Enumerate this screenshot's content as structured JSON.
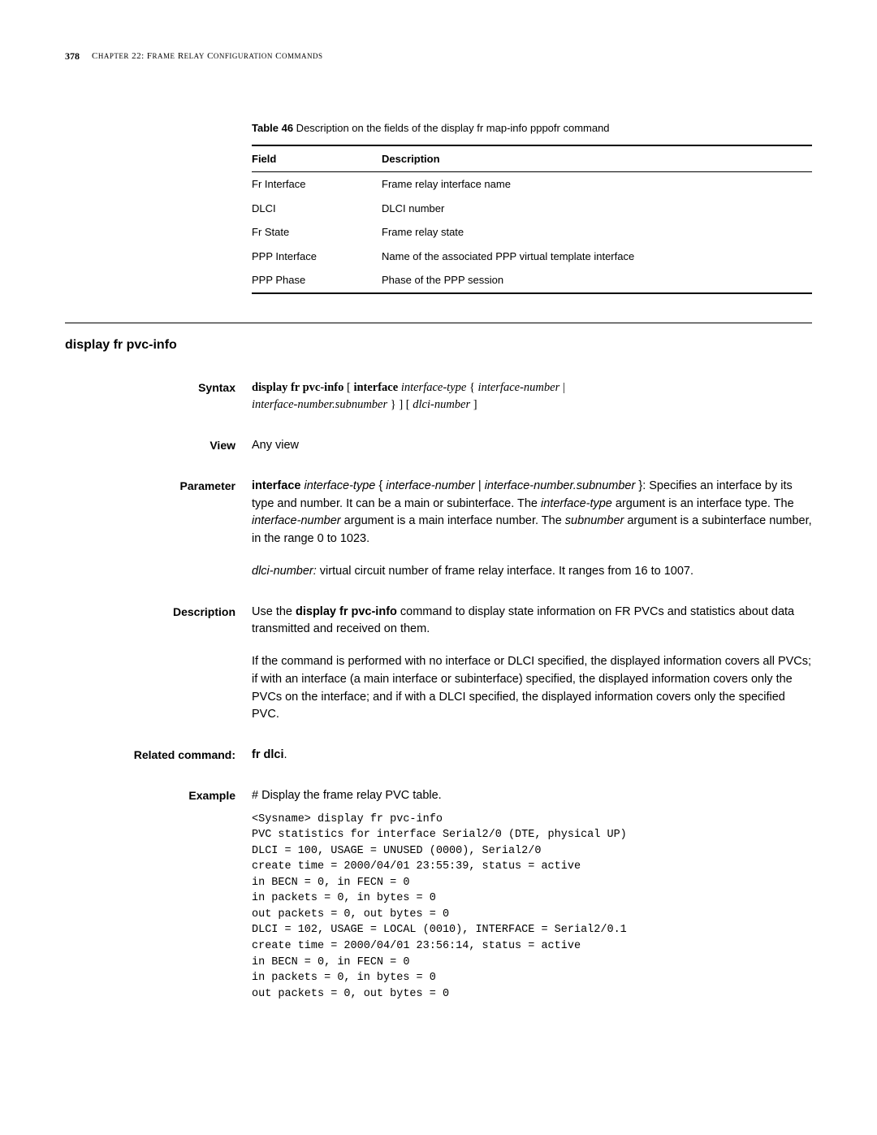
{
  "page": {
    "number": "378",
    "chapter_title_1": "C",
    "chapter_title_2": "HAPTER",
    "chapter_title_3": " 22: F",
    "chapter_title_4": "RAME",
    "chapter_title_5": " R",
    "chapter_title_6": "ELAY",
    "chapter_title_7": " C",
    "chapter_title_8": "ONFIGURATION",
    "chapter_title_9": " C",
    "chapter_title_10": "OMMANDS"
  },
  "table": {
    "caption_label": "Table 46",
    "caption_text": "   Description on the fields of the display fr map-info pppofr command",
    "header_field": "Field",
    "header_desc": "Description",
    "rows": [
      {
        "field": "Fr Interface",
        "desc": "Frame relay interface name"
      },
      {
        "field": "DLCI",
        "desc": "DLCI number"
      },
      {
        "field": "Fr State",
        "desc": "Frame relay state"
      },
      {
        "field": "PPP Interface",
        "desc": "Name of the associated PPP virtual template interface"
      },
      {
        "field": "PPP Phase",
        "desc": "Phase of the PPP session"
      }
    ]
  },
  "section": {
    "title": "display fr pvc-info"
  },
  "syntax": {
    "label": "Syntax",
    "cmd": "display fr pvc-info",
    "kw_interface": "interface",
    "arg_itype": "interface-type",
    "arg_inum": "interface-number",
    "arg_sub": "interface-number.subnumber",
    "arg_dlci": "dlci-number",
    "open_bracket": " [ ",
    "open_brace": " { ",
    "pipe": " | ",
    "close_brace_bracket": " } ] [ ",
    "close_bracket": " ]"
  },
  "view": {
    "label": "View",
    "text": "Any view"
  },
  "parameter": {
    "label": "Parameter",
    "p1_kw": "interface",
    "p1_arg1": "interface-type",
    "p1_brace_open": " { ",
    "p1_arg2": "interface-number",
    "p1_pipe": " | ",
    "p1_arg3": "interface-number.subnumber",
    "p1_brace_close": " }: ",
    "p1_text1": "Specifies an interface by its type and number. It can be a main or subinterface. The ",
    "p1_itype": "interface-type",
    "p1_text2": " argument is an interface type. The ",
    "p1_inum": "interface-number",
    "p1_text3": " argument is a main interface number. The ",
    "p1_sub": "subnumber",
    "p1_text4": " argument is a subinterface number, in the range 0 to 1023.",
    "p2_arg": "dlci-number:",
    "p2_text": " virtual circuit number of frame relay interface. It ranges from 16 to 1007."
  },
  "description": {
    "label": "Description",
    "p1_text1": "Use the ",
    "p1_cmd": "display fr pvc-info",
    "p1_text2": " command to display state information on FR PVCs and statistics about data transmitted and received on them.",
    "p2": "If the command is performed with no interface or DLCI specified, the displayed information covers all PVCs; if with an interface (a main interface or subinterface) specified, the displayed information covers only the PVCs on the interface; and if with a DLCI specified, the displayed information covers only the specified PVC."
  },
  "related": {
    "label": "Related command:",
    "cmd": "fr dlci",
    "period": "."
  },
  "example": {
    "label": "Example",
    "intro": "# Display the frame relay PVC table.",
    "code": "<Sysname> display fr pvc-info\nPVC statistics for interface Serial2/0 (DTE, physical UP)\nDLCI = 100, USAGE = UNUSED (0000), Serial2/0\ncreate time = 2000/04/01 23:55:39, status = active\nin BECN = 0, in FECN = 0\nin packets = 0, in bytes = 0\nout packets = 0, out bytes = 0\nDLCI = 102, USAGE = LOCAL (0010), INTERFACE = Serial2/0.1\ncreate time = 2000/04/01 23:56:14, status = active\nin BECN = 0, in FECN = 0\nin packets = 0, in bytes = 0\nout packets = 0, out bytes = 0"
  },
  "colors": {
    "text": "#000000",
    "bg": "#ffffff",
    "rule": "#000000"
  }
}
